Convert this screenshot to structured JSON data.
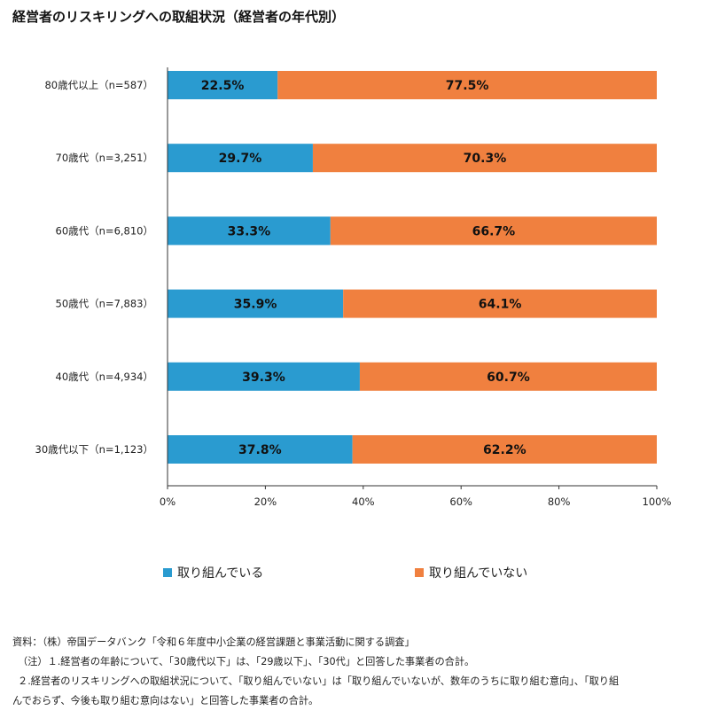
{
  "title": "経営者のリスキリングへの取組状況（経営者の年代別）",
  "chart_data": {
    "type": "bar",
    "orientation": "horizontal",
    "stacked": true,
    "percent": true,
    "categories": [
      "80歳代以上（n=587）",
      "70歳代（n=3,251）",
      "60歳代（n=6,810）",
      "50歳代（n=7,883）",
      "40歳代（n=4,934）",
      "30歳代以下（n=1,123）"
    ],
    "series": [
      {
        "name": "取り組んでいる",
        "values": [
          22.5,
          29.7,
          33.3,
          35.9,
          39.3,
          37.8
        ],
        "labels": [
          "22.5%",
          "29.7%",
          "33.3%",
          "35.9%",
          "39.3%",
          "37.8%"
        ],
        "color": "#2a9bd0"
      },
      {
        "name": "取り組んでいない",
        "values": [
          77.5,
          70.3,
          66.7,
          64.1,
          60.7,
          62.2
        ],
        "labels": [
          "77.5%",
          "70.3%",
          "66.7%",
          "64.1%",
          "60.7%",
          "62.2%"
        ],
        "color": "#f0803f"
      }
    ],
    "xlim": [
      0,
      100
    ],
    "xticks": [
      0,
      20,
      40,
      60,
      80,
      100
    ],
    "xtick_labels": [
      "0%",
      "20%",
      "40%",
      "60%",
      "80%",
      "100%"
    ],
    "grid": false,
    "legend_position": "bottom"
  },
  "notes": [
    "資料：（株）帝国データバンク「令和６年度中小企業の経営課題と事業活動に関する調査」",
    "（注）１.経営者の年齢について、「30歳代以下」は、「29歳以下」、「30代」と回答した事業者の合計。",
    "２.経営者のリスキリングへの取組状況について、「取り組んでいない」は「取り組んでいないが、数年のうちに取り組む意向」、「取り組",
    "んでおらず、今後も取り組む意向はない」と回答した事業者の合計。"
  ]
}
